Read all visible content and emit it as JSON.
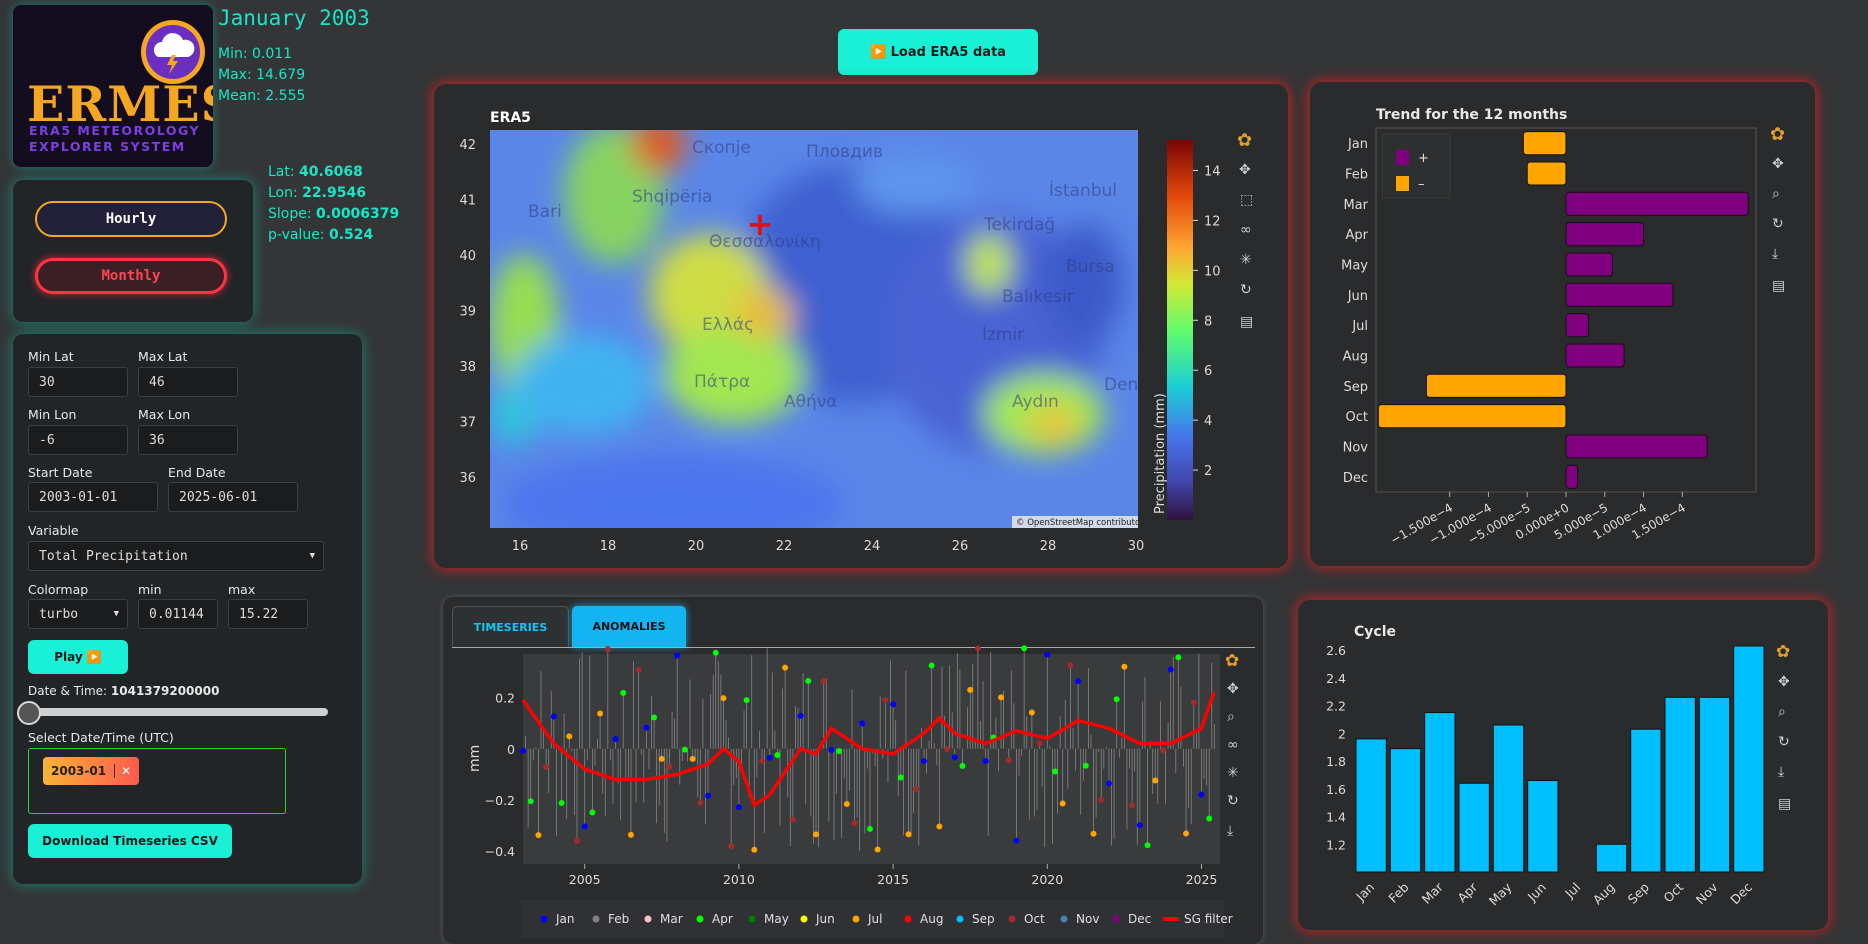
{
  "logo": {
    "title": "ERMES",
    "line1": "ERA5 METEOROLOGY",
    "line2": "EXPLORER SYSTEM"
  },
  "stats": {
    "period": "January 2003",
    "min": "Min: 0.011",
    "max": "Max: 14.679",
    "mean": "Mean: 2.555"
  },
  "point": {
    "lat_label": "Lat:",
    "lat": "40.6068",
    "lon_label": "Lon:",
    "lon": "22.9546",
    "slope_label": "Slope:",
    "slope": "0.0006379",
    "p_label": "p-value:",
    "p": "0.524"
  },
  "mode": {
    "hourly": "Hourly",
    "monthly": "Monthly"
  },
  "controls": {
    "min_lat_label": "Min Lat",
    "min_lat": "30",
    "max_lat_label": "Max Lat",
    "max_lat": "46",
    "min_lon_label": "Min Lon",
    "min_lon": "-6",
    "max_lon_label": "Max Lon",
    "max_lon": "36",
    "start_label": "Start Date",
    "start": "2003-01-01",
    "end_label": "End Date",
    "end": "2025-06-01",
    "variable_label": "Variable",
    "variable": "Total Precipitation",
    "colormap_label": "Colormap",
    "colormap": "turbo",
    "cmin_label": "min",
    "cmin": "0.01144",
    "cmax_label": "max",
    "cmax": "15.22",
    "play": "Play ▶️",
    "datetime_label": "Date & Time:",
    "datetime": "1041379200000",
    "slider_position": 0,
    "select_label": "Select Date/Time (UTC)",
    "chip": "2003-01",
    "download": "Download Timeseries CSV"
  },
  "load_button": "▶️ Load ERA5 data",
  "map": {
    "title": "ERA5",
    "y_ticks": [
      "42",
      "41",
      "40",
      "39",
      "38",
      "37",
      "36"
    ],
    "x_ticks": [
      "16",
      "18",
      "20",
      "22",
      "24",
      "26",
      "28",
      "30"
    ],
    "colorbar_label": "Precipitation (mm)",
    "colorbar_ticks": [
      "14",
      "12",
      "10",
      "8",
      "6",
      "4",
      "2"
    ],
    "attribution": "© OpenStreetMap contributors",
    "place_labels": [
      "Скопје",
      "Пловдив",
      "İstanbul",
      "Shqipëria",
      "Bari",
      "Tekirdağ",
      "Θεσσαλονίκη",
      "Bursa",
      "Balıkesir",
      "Ελλάς",
      "İzmir",
      "Πάτρα",
      "Αθήνα",
      "Aydın",
      "Den"
    ]
  },
  "trend": {
    "title": "Trend for the 12 months",
    "legend_plus": "+",
    "legend_minus": "–",
    "colors": {
      "plus": "#800080",
      "minus": "#ffa500"
    },
    "chart_data": {
      "type": "bar",
      "orientation": "horizontal",
      "categories": [
        "Jan",
        "Feb",
        "Mar",
        "Apr",
        "May",
        "Jun",
        "Jul",
        "Aug",
        "Sep",
        "Oct",
        "Nov",
        "Dec"
      ],
      "values": [
        -5.5e-05,
        -5e-05,
        0.000235,
        0.0001,
        6e-05,
        0.000138,
        2.9e-05,
        7.5e-05,
        -0.00018,
        -0.000242,
        0.000182,
        1.5e-05
      ],
      "xlim": [
        -0.000245,
        0.000245
      ],
      "x_ticks": [
        "−1.500e−4",
        "−1.000e−4",
        "−5.000e−5",
        "0.000e+0",
        "5.000e−5",
        "1.000e−4",
        "1.500e−4"
      ],
      "x_tick_values": [
        -0.00015,
        -0.0001,
        -5e-05,
        0,
        5e-05,
        0.0001,
        0.00015
      ]
    }
  },
  "tabs": {
    "timeseries": "TIMESERIES",
    "anomalies": "ANOMALIES"
  },
  "anomaly": {
    "ylabel": "mm",
    "y_ticks": [
      "0.2",
      "0",
      "−0.2",
      "−0.4"
    ],
    "x_ticks": [
      "2005",
      "2010",
      "2015",
      "2020",
      "2025"
    ],
    "legend": [
      {
        "name": "Jan",
        "color": "#0000ff"
      },
      {
        "name": "Feb",
        "color": "#808080"
      },
      {
        "name": "Mar",
        "color": "#ffc0cb"
      },
      {
        "name": "Apr",
        "color": "#00ff00"
      },
      {
        "name": "May",
        "color": "#008000"
      },
      {
        "name": "Jun",
        "color": "#ffff00"
      },
      {
        "name": "Jul",
        "color": "#ffa500"
      },
      {
        "name": "Aug",
        "color": "#ff0000"
      },
      {
        "name": "Sep",
        "color": "#00bfff"
      },
      {
        "name": "Oct",
        "color": "#a52a2a"
      },
      {
        "name": "Nov",
        "color": "#4682b4"
      },
      {
        "name": "Dec",
        "color": "#800080"
      },
      {
        "name": "SG filter",
        "color": "#ff0000"
      }
    ],
    "chart_data": {
      "type": "line",
      "series_name": "SG filter",
      "x": [
        2003.0,
        2004.0,
        2005.0,
        2006.0,
        2007.0,
        2008.0,
        2009.0,
        2009.5,
        2010.0,
        2010.5,
        2011.0,
        2012.0,
        2012.5,
        2013.0,
        2014.0,
        2015.0,
        2016.0,
        2016.5,
        2017.0,
        2018.0,
        2019.0,
        2020.0,
        2021.0,
        2022.0,
        2023.0,
        2024.0,
        2025.0,
        2025.4
      ],
      "y": [
        0.19,
        0.02,
        -0.08,
        -0.12,
        -0.12,
        -0.1,
        -0.06,
        0.0,
        -0.05,
        -0.22,
        -0.18,
        0.0,
        -0.02,
        0.08,
        0.0,
        -0.02,
        0.06,
        0.12,
        0.06,
        0.02,
        0.07,
        0.04,
        0.11,
        0.08,
        0.02,
        0.02,
        0.08,
        0.22
      ],
      "ylim": [
        -0.45,
        0.37
      ],
      "xlim": [
        2003.0,
        2025.6
      ]
    }
  },
  "cycle": {
    "title": "Cycle",
    "bar_color": "#00bfff",
    "chart_data": {
      "type": "bar",
      "categories": [
        "Jan",
        "Feb",
        "Mar",
        "Apr",
        "May",
        "Jun",
        "Jul",
        "Aug",
        "Sep",
        "Oct",
        "Nov",
        "Dec"
      ],
      "values": [
        1.96,
        1.89,
        2.15,
        1.64,
        2.06,
        1.66,
        1.0,
        1.2,
        2.03,
        2.26,
        2.26,
        2.63
      ],
      "ylim": [
        1.0,
        2.63
      ],
      "y_ticks": [
        "2.6",
        "2.4",
        "2.2",
        "2",
        "1.8",
        "1.6",
        "1.4",
        "1.2"
      ],
      "y_tick_values": [
        2.6,
        2.4,
        2.2,
        2.0,
        1.8,
        1.6,
        1.4,
        1.2
      ]
    }
  }
}
